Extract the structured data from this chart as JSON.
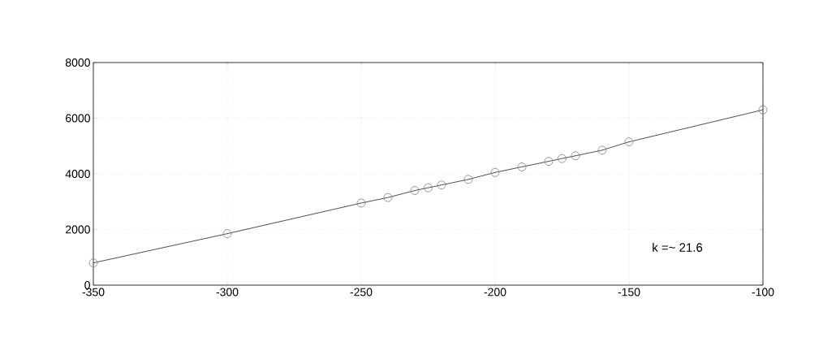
{
  "chart_data": {
    "type": "line",
    "x": [
      -350,
      -300,
      -250,
      -240,
      -230,
      -225,
      -220,
      -210,
      -200,
      -190,
      -180,
      -175,
      -170,
      -160,
      -150,
      -100
    ],
    "series": [
      {
        "color": "#222222",
        "values": [
          800,
          1850,
          2950,
          3150,
          3400,
          3500,
          3600,
          3800,
          4050,
          4250,
          4450,
          4550,
          4650,
          4850,
          5150,
          6300
        ]
      }
    ],
    "xlim": [
      -350,
      -100
    ],
    "xticks": [
      -350,
      -300,
      -250,
      -200,
      -150,
      -100
    ],
    "ylim": [
      0,
      8000
    ],
    "yticks": [
      0,
      2000,
      4000,
      6000,
      8000
    ],
    "grid": true,
    "marker": "circle",
    "line_style": "solid",
    "annotations": [
      "k =~ 21.6"
    ]
  }
}
